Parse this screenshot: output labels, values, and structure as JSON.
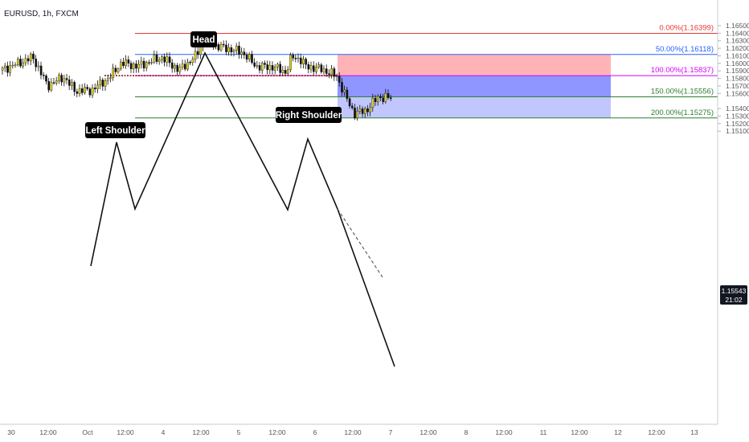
{
  "header": {
    "symbol": "EURUSD, 1h, FXCM"
  },
  "chart_data": {
    "type": "candlestick",
    "symbol": "EURUSD",
    "timeframe": "1h",
    "ylim": [
      1.1505,
      1.1658
    ],
    "price_ticks": [
      "1.16500",
      "1.16400",
      "1.16300",
      "1.16200",
      "1.16100",
      "1.16000",
      "1.15900",
      "1.15800",
      "1.15700",
      "1.15600",
      "1.15400",
      "1.15300",
      "1.15200",
      "1.15100"
    ],
    "time_ticks": [
      "30",
      "12:00",
      "Oct",
      "12:00",
      "4",
      "12:00",
      "5",
      "12:00",
      "6",
      "12:00",
      "7",
      "12:00",
      "8",
      "12:00",
      "11",
      "12:00",
      "12",
      "12:00",
      "13"
    ],
    "current_price": {
      "price": "1.15543",
      "countdown": "21:02"
    },
    "fib_levels": [
      {
        "label": "0.00%(1.16399)",
        "price": 1.16399,
        "color": "#e53935"
      },
      {
        "label": "50.00%(1.16118)",
        "price": 1.16118,
        "color": "#2962ff"
      },
      {
        "label": "100.00%(1.15837)",
        "price": 1.15837,
        "color": "#d500f9"
      },
      {
        "label": "150.00%(1.15556)",
        "price": 1.15556,
        "color": "#2e7d32"
      },
      {
        "label": "200.00%(1.15275)",
        "price": 1.15275,
        "color": "#2e7d32"
      }
    ],
    "annotations": [
      "Left Shoulder",
      "Head",
      "Right Shoulder"
    ],
    "colors": {
      "up_candle": "#e6d619",
      "down_candle": "#111111",
      "stop_zone": "#ffb3b6",
      "target_zone_1": "#8f96ff",
      "target_zone_2": "#c2c6ff",
      "price_tag": "#131722"
    }
  }
}
